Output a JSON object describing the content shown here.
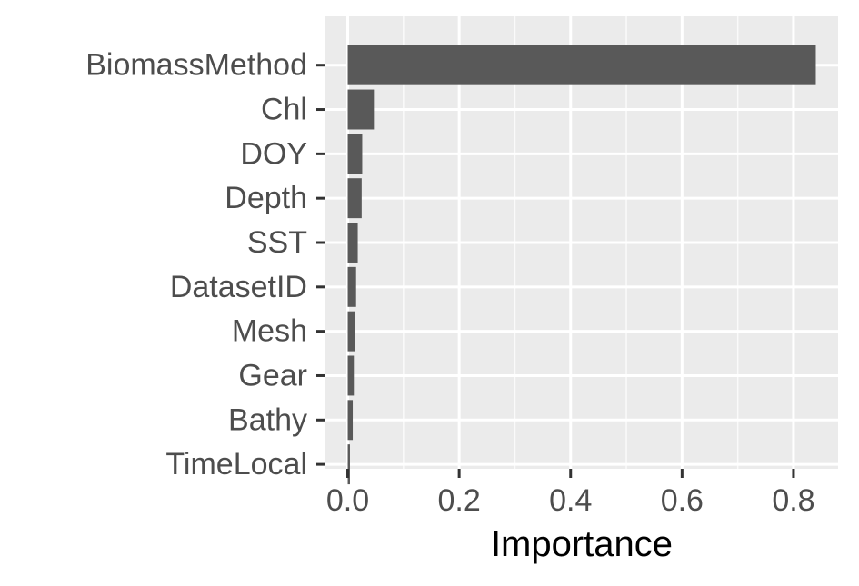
{
  "chart_data": {
    "type": "bar",
    "orientation": "horizontal",
    "title": "",
    "xlabel": "Importance",
    "ylabel": "",
    "categories": [
      "BiomassMethod",
      "Chl",
      "DOY",
      "Depth",
      "SST",
      "DatasetID",
      "Mesh",
      "Gear",
      "Bathy",
      "TimeLocal"
    ],
    "values": [
      0.84,
      0.047,
      0.026,
      0.025,
      0.018,
      0.015,
      0.013,
      0.011,
      0.009,
      0.004
    ],
    "xlim": [
      -0.04,
      0.88
    ],
    "xticks": [
      0.0,
      0.2,
      0.4,
      0.6,
      0.8
    ],
    "xtick_labels": [
      "0.0",
      "0.2",
      "0.4",
      "0.6",
      "0.8"
    ],
    "grid": true,
    "legend": "none",
    "colors": {
      "panel_background": "#ebebeb",
      "grid_major": "#ffffff",
      "bar_fill": "#595959",
      "tick_text": "#4d4d4d",
      "tick_mark": "#333333",
      "axis_title": "#000000"
    }
  }
}
